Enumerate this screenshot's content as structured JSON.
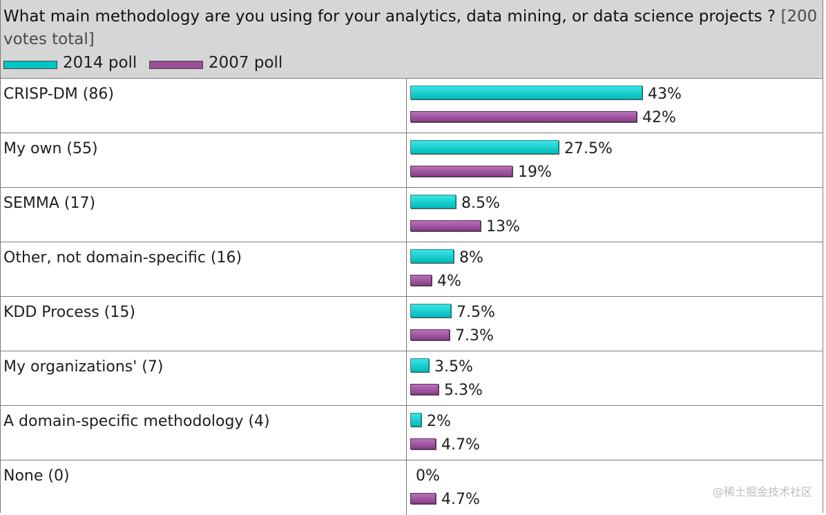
{
  "header": {
    "question": "What main methodology are you using for your analytics, data mining, or data science projects ?",
    "votes_note": "[200 votes total]"
  },
  "colors": {
    "s2014": "#00c4c4",
    "s2007": "#9b4f9b"
  },
  "chart_data": {
    "type": "bar",
    "orientation": "horizontal",
    "title": "What main methodology are you using for your analytics, data mining, or data science projects ? [200 votes total]",
    "categories": [
      "CRISP-DM (86)",
      "My own (55)",
      "SEMMA (17)",
      "Other, not domain-specific (16)",
      "KDD Process (15)",
      "My organizations' (7)",
      "A domain-specific methodology (4)",
      "None (0)"
    ],
    "series": [
      {
        "name": "2014 poll",
        "values": [
          43,
          27.5,
          8.5,
          8,
          7.5,
          3.5,
          2,
          0
        ],
        "labels": [
          "43%",
          "27.5%",
          "8.5%",
          "8%",
          "7.5%",
          "3.5%",
          "2%",
          "0%"
        ]
      },
      {
        "name": "2007 poll",
        "values": [
          42,
          19,
          13,
          4,
          7.3,
          5.3,
          4.7,
          4.7
        ],
        "labels": [
          "42%",
          "19%",
          "13%",
          "4%",
          "7.3%",
          "5.3%",
          "4.7%",
          "4.7%"
        ]
      }
    ],
    "xlim": [
      0,
      43
    ],
    "legend": "top-left",
    "grid": false
  },
  "watermark": "@稀土掘金技术社区"
}
